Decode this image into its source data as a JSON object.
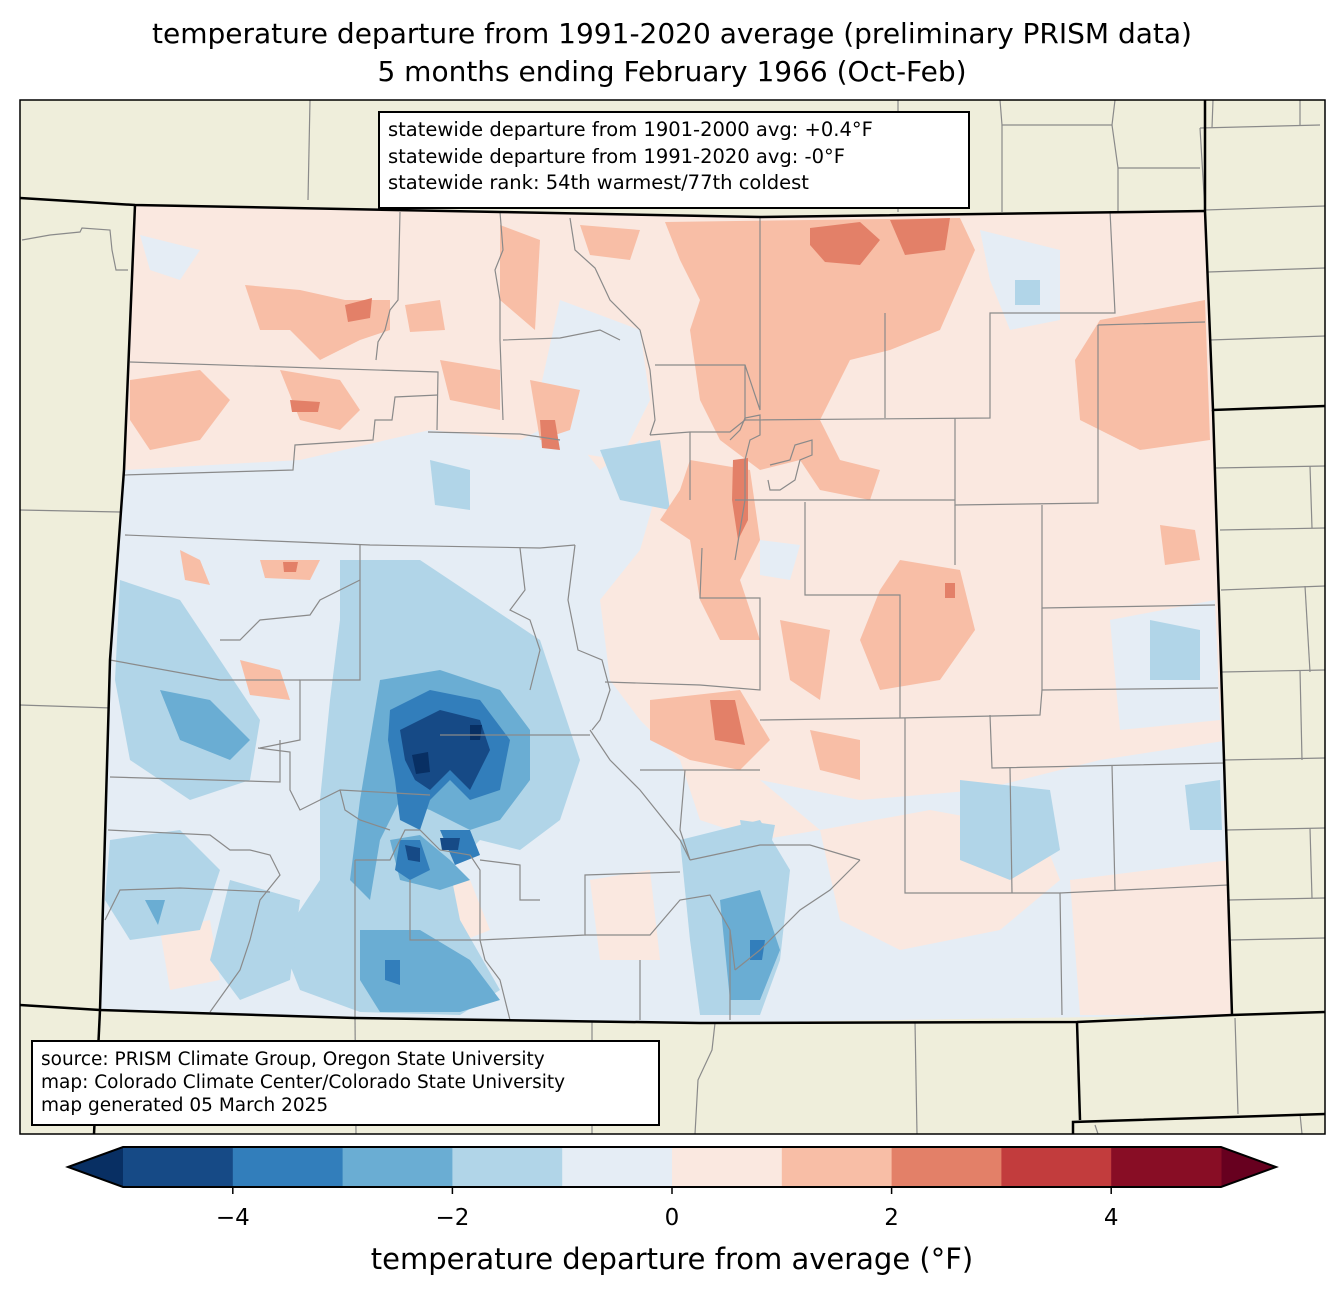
{
  "title": {
    "line1": "temperature departure from 1991-2020 average (preliminary PRISM data)",
    "line2": "5 months ending February 1966 (Oct-Feb)"
  },
  "stats_box": {
    "line1": "statewide departure from 1901-2000 avg: +0.4°F",
    "line2": "statewide departure from 1991-2020 avg: -0°F",
    "line3": "statewide rank: 54th warmest/77th coldest"
  },
  "credits_box": {
    "line1": "source: PRISM Climate Group, Oregon State University",
    "line2": "map: Colorado Climate Center/Colorado State University",
    "line3": "map generated 05 March 2025"
  },
  "colorbar": {
    "label": "temperature departure from average (°F)",
    "min": -5,
    "max": 5,
    "levels": [
      -5,
      -4,
      -3,
      -2,
      -1,
      0,
      1,
      2,
      3,
      4,
      5
    ],
    "colors": [
      "#164a86",
      "#327ebb",
      "#6aadd3",
      "#b1d5e8",
      "#e5edf5",
      "#fae8e0",
      "#f8bea6",
      "#e38068",
      "#c23c3d",
      "#880d25"
    ],
    "under_color": "#082f63",
    "over_color": "#67001f",
    "ticks": [
      {
        "value": -4,
        "label": "−4"
      },
      {
        "value": -2,
        "label": "−2"
      },
      {
        "value": 0,
        "label": "0"
      },
      {
        "value": 2,
        "label": "2"
      },
      {
        "value": 4,
        "label": "4"
      }
    ]
  },
  "map_colors": {
    "land_outside": "#efeedb",
    "county_line": "#888888",
    "state_line": "#000000"
  }
}
